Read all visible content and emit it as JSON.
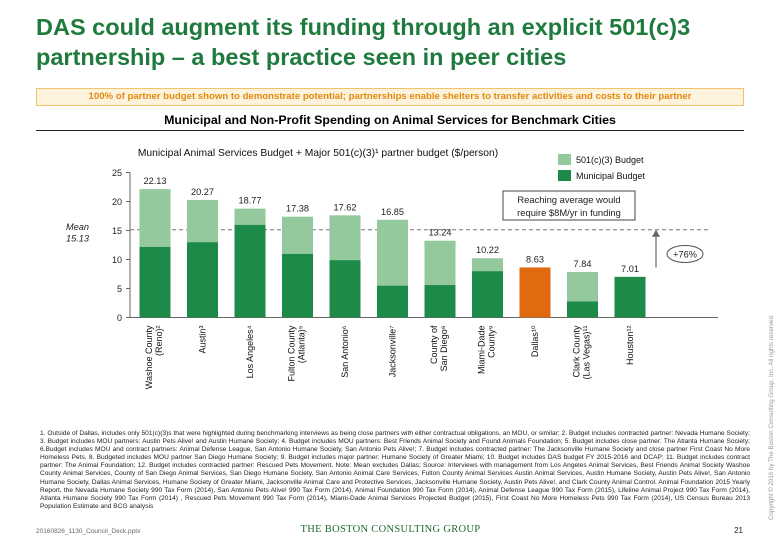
{
  "title_line1": "DAS could augment its funding through an explicit 501(c)3",
  "title_line2": "partnership – a best practice seen in peer cities",
  "banner": "100% of partner budget shown to demonstrate potential; partnerships enable shelters to transfer activities and costs to their partner",
  "subtitle": "Municipal and Non-Profit Spending on Animal Services for Benchmark Cities",
  "chart_data": {
    "type": "bar",
    "stacked": true,
    "title": "Municipal Animal Services Budget + Major 501(c)(3)¹ partner budget ($/person)",
    "ylim": [
      0,
      25
    ],
    "yticks": [
      "0",
      "5",
      "10",
      "15",
      "20",
      "25"
    ],
    "categories": [
      [
        "Washoe County",
        "(Reno)²"
      ],
      [
        "Austin³"
      ],
      [
        "Los Angeles⁴"
      ],
      [
        "Fulton County",
        "(Atlanta)⁵"
      ],
      [
        "San Antonio⁶"
      ],
      [
        "Jacksonville⁷"
      ],
      [
        "County of",
        "San Diego⁸"
      ],
      [
        "Miami-Dade",
        "County⁹"
      ],
      [
        "Dallas¹⁰"
      ],
      [
        "Clark County",
        "(Las Vegas)¹¹"
      ],
      [
        "Houston¹²"
      ]
    ],
    "series": [
      {
        "name": "Municipal Budget",
        "color": "#1e8a4a",
        "values": [
          12.2,
          13.0,
          16.0,
          11.0,
          9.9,
          5.5,
          5.6,
          8.0,
          8.63,
          2.8,
          7.01
        ]
      },
      {
        "name": "501(c)(3) Budget",
        "color": "#93c99c",
        "values": [
          9.93,
          7.27,
          2.77,
          6.38,
          7.72,
          11.35,
          7.64,
          2.22,
          0,
          5.04,
          0
        ]
      }
    ],
    "highlight": {
      "index": 8,
      "color": "#e06a10"
    },
    "totals": [
      "22.13",
      "20.27",
      "18.77",
      "17.38",
      "17.62",
      "16.85",
      "13.24",
      "10.22",
      "8.63",
      "7.84",
      "7.01"
    ],
    "mean": {
      "value": 15.13,
      "label": "Mean",
      "label2": "15.13"
    },
    "annotation": {
      "line1": "Reaching average would",
      "line2": "require $8M/yr in funding"
    },
    "increase_label": "+76%"
  },
  "footnote": "1. Outside of Dallas, includes only 501(c)(3)s that were highlighted during benchmarking interviews as being close partners with either contractual obligations, an MOU, or similar; 2. Budget includes contracted partner: Nevada Humane Society; 3. Budget includes MOU partners: Austin Pets Alive! and Austin Humane Society; 4. Budget includes MOU partners: Best Friends Animal Society and Found Animals Foundation; 5. Budget includes close partner: The Atlanta Humane Society; 6.Budget includes MOU and contract partners: Animal Defense League, San Antonio Humane Society, San Antonio Pets Alive!; 7. Budget includes contracted partner: The Jacksonville Humane Society and close partner First Coast No More Homeless Pets. 8. Budgeted includes MOU partner San Diego Humane Society; 9. Budget includes major partner: Humane Society of Greater Miami; 10. Budget includes DAS budget FY 2015-2016 and DCAP; 11. Budget includes contract partner: The Animal Foundation; 12. Budget includes contracted partner: Rescued Pets Movement. Note: Mean excludes Dallas; Source: Interviews with management from Los Angeles Animal Services, Best Friends Animal Society Washoe County Animal Services, County of San Diego Animal Services, San Diego Humane Society, San Antonio Animal Care Services, Fulton County Animal Services Austin Animal Services, Austin Humane Society, Austin Pets Alive!, San Antonio Humane Society, Dallas Animal Services, Humane Society of Greater Miami, Jacksonville Animal Care and Protective Services, Jacksonville Humane Society, Austin Pets Alive!, and Clark County Animal Control. Animal Foundation 2015 Yearly Report, the Nevada Humane Society 990 Tax Form (2014), San Antonio Pets Alive! 990 Tax Form (2014), Animal Foundation 990 Tax Form (2014), Animal Defense League 990 Tax Form (2015), Lifeline Animal Project 990 Tax Form (2014), Atlanta Humane Society 990 Tax Form (2014) , Rescued Pets Movement 990 Tax Form (2014), Miami-Dade Animal Services Projected Budget (2015), First Coast No More Homeless Pets 990 Tax Form (2014), US Census Bureau 2013 Population Estimate and BCG analysis",
  "footer_file": "20160826_1130_Council_Deck.pptx",
  "footer_logo": "THE BOSTON CONSULTING GROUP",
  "page_number": "21",
  "copyright": "Copyright © 2016 by The Boston Consulting Group, Inc. All rights reserved."
}
